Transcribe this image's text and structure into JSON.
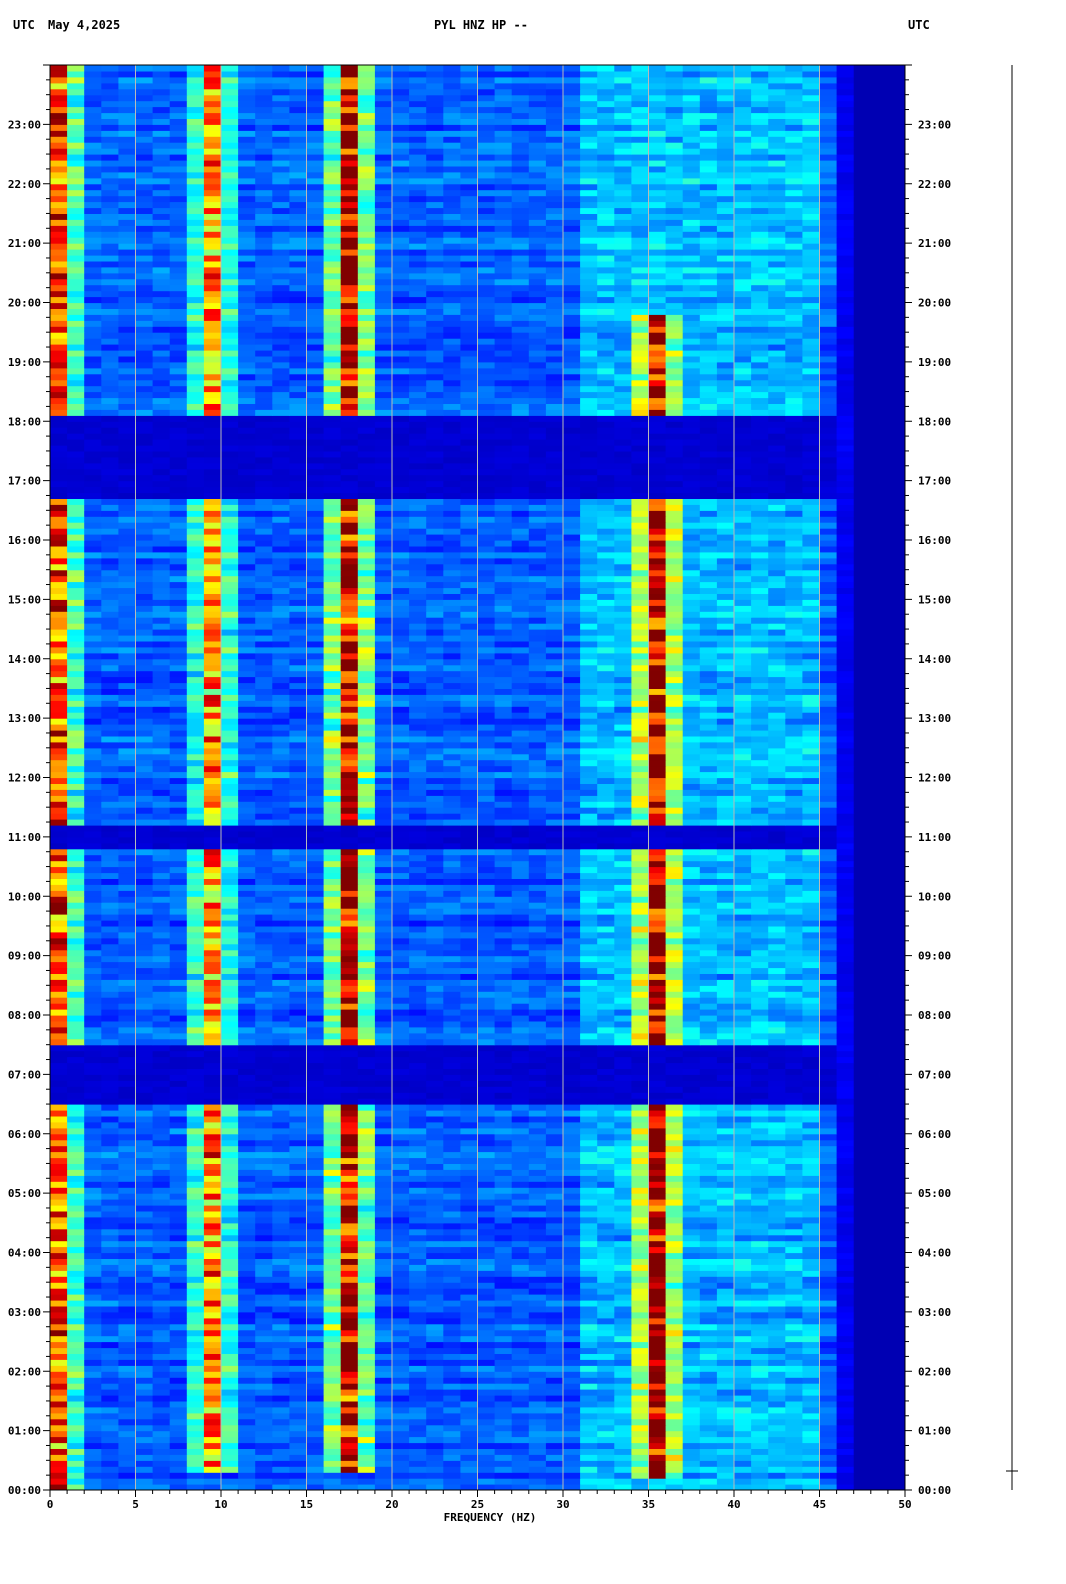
{
  "header": {
    "left_label": "UTC",
    "date": "May 4,2025",
    "title": "PYL HNZ HP --",
    "right_label": "UTC"
  },
  "chart_data": {
    "type": "heatmap",
    "title": "PYL HNZ HP --",
    "xlabel": "FREQUENCY (HZ)",
    "ylabel": "UTC",
    "xlim": [
      0,
      50
    ],
    "ylim_hours": [
      0,
      24
    ],
    "x_ticks": [
      "0",
      "5",
      "10",
      "15",
      "20",
      "25",
      "30",
      "35",
      "40",
      "45",
      "50"
    ],
    "y_ticks": [
      "00:00",
      "01:00",
      "02:00",
      "03:00",
      "04:00",
      "05:00",
      "06:00",
      "07:00",
      "08:00",
      "09:00",
      "10:00",
      "11:00",
      "12:00",
      "13:00",
      "14:00",
      "15:00",
      "16:00",
      "17:00",
      "18:00",
      "19:00",
      "20:00",
      "21:00",
      "22:00",
      "23:00"
    ],
    "grid": "vertical",
    "colormap": [
      "#00008f",
      "#0000ff",
      "#0080ff",
      "#00ffff",
      "#80ff80",
      "#ffff00",
      "#ff8000",
      "#ff0000",
      "#800000"
    ],
    "features": [
      {
        "kind": "band",
        "freq": 17.5,
        "from": 0.3,
        "to": 24,
        "strength": 0.85
      },
      {
        "kind": "band",
        "freq": 9.5,
        "from": 0.3,
        "to": 24,
        "strength": 0.6
      },
      {
        "kind": "band",
        "freq": 35.5,
        "from": 0.2,
        "to": 19.8,
        "strength": 0.75
      },
      {
        "kind": "band",
        "freq": 0.5,
        "from": 0,
        "to": 24,
        "strength": 0.7
      },
      {
        "kind": "quiet",
        "from": 6.55,
        "to": 7.5
      },
      {
        "kind": "quiet",
        "from": 16.7,
        "to": 18.05
      },
      {
        "kind": "quiet",
        "from": 10.8,
        "to": 11.2
      }
    ]
  }
}
